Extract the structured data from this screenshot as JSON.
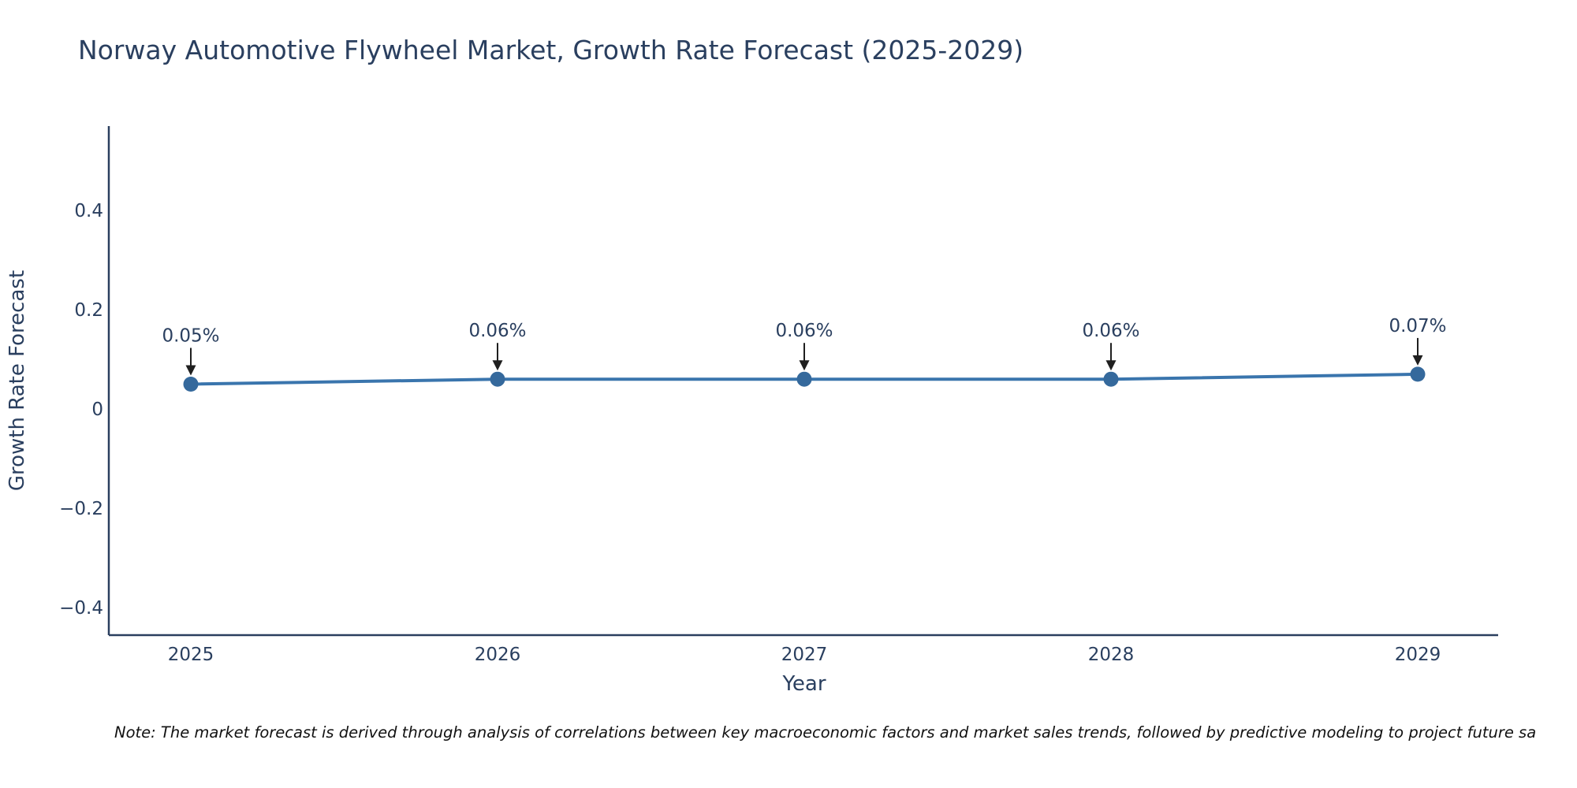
{
  "title": "Norway Automotive Flywheel Market, Growth Rate Forecast (2025-2029)",
  "note": "Note: The market forecast is derived through analysis of correlations between key macroeconomic factors and market sales trends, followed by predictive modeling to project future sa",
  "chart_data": {
    "type": "line",
    "title": "Norway Automotive Flywheel Market, Growth Rate Forecast (2025-2029)",
    "xlabel": "Year",
    "ylabel": "Growth Rate Forecast",
    "x": [
      2025,
      2026,
      2027,
      2028,
      2029
    ],
    "values": [
      0.05,
      0.06,
      0.06,
      0.06,
      0.07
    ],
    "point_labels": [
      "0.05%",
      "0.06%",
      "0.06%",
      "0.06%",
      "0.07%"
    ],
    "xticks": [
      "2025",
      "2026",
      "2027",
      "2028",
      "2029"
    ],
    "yticks": [
      {
        "label": "0.4",
        "value": 0.4
      },
      {
        "label": "0.2",
        "value": 0.2
      },
      {
        "label": "0",
        "value": 0
      },
      {
        "label": "−0.2",
        "value": -0.2
      },
      {
        "label": "−0.4",
        "value": -0.4
      }
    ],
    "ylim": [
      -0.46,
      0.57
    ],
    "grid": false,
    "legend": "none",
    "line_color": "#3a75ad",
    "marker_color": "#35699c",
    "text_color": "#2a3f5f",
    "arrow_color": "#1f1f1f",
    "background_color": "#ffffff"
  }
}
